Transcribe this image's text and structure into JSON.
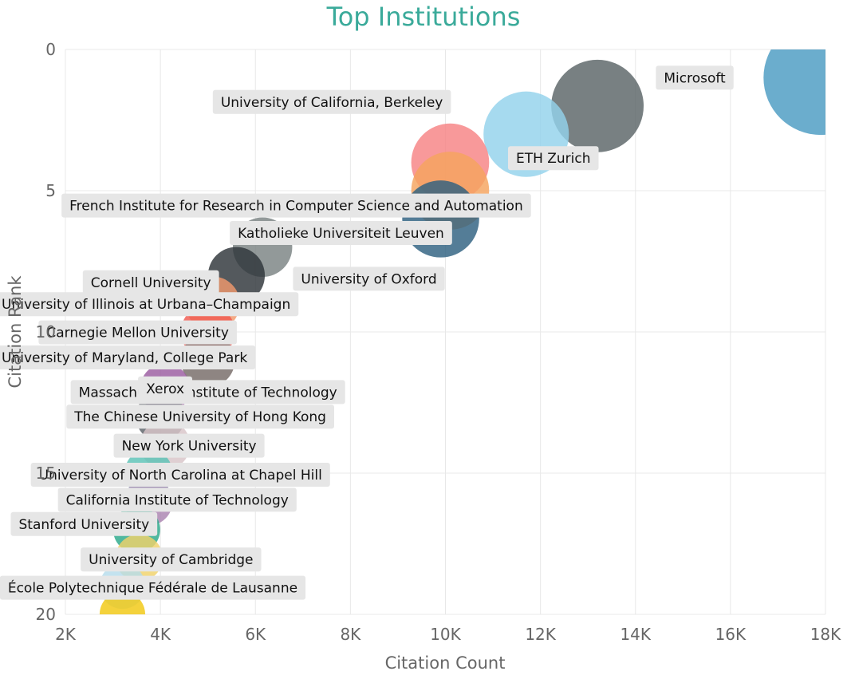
{
  "chart_data": {
    "type": "scatter",
    "title": "Top Institutions",
    "xlabel": "Citation Count",
    "ylabel": "Citation Rank",
    "xlim": [
      2000,
      18000
    ],
    "ylim": [
      0,
      20
    ],
    "y_reversed": true,
    "grid": true,
    "x_ticks": [
      {
        "value": 2000,
        "label": "2K"
      },
      {
        "value": 4000,
        "label": "4K"
      },
      {
        "value": 6000,
        "label": "6K"
      },
      {
        "value": 8000,
        "label": "8K"
      },
      {
        "value": 10000,
        "label": "10K"
      },
      {
        "value": 12000,
        "label": "12K"
      },
      {
        "value": 14000,
        "label": "14K"
      },
      {
        "value": 16000,
        "label": "16K"
      },
      {
        "value": 18000,
        "label": "18K"
      }
    ],
    "y_ticks": [
      {
        "value": 0,
        "label": "0"
      },
      {
        "value": 5,
        "label": "5"
      },
      {
        "value": 10,
        "label": "10"
      },
      {
        "value": 15,
        "label": "15"
      },
      {
        "value": 20,
        "label": "20"
      }
    ],
    "points": [
      {
        "name": "Microsoft",
        "x": 17900,
        "y": 1,
        "color": "#4a9bc2",
        "label_dx": -158,
        "label_dy": 0
      },
      {
        "name": "University of California, Berkeley",
        "x": 13200,
        "y": 2,
        "color": "#5a6466",
        "label_dx": -333,
        "label_dy": -5
      },
      {
        "name": "ETH Zurich",
        "x": 11700,
        "y": 3,
        "color": "#92d2ec",
        "label_dx": 34,
        "label_dy": 30
      },
      {
        "name": "French Institute for Research in Computer Science and Automation",
        "x": 10100,
        "y": 4,
        "color": "#f68384",
        "label_dx": -193,
        "label_dy": 54
      },
      {
        "name": "Katholieke Universiteit Leuven",
        "x": 10100,
        "y": 5,
        "color": "#f5a45e",
        "label_dx": -137,
        "label_dy": 53
      },
      {
        "name": "University of Oxford",
        "x": 9900,
        "y": 6,
        "color": "#2e6080",
        "label_dx": -90,
        "label_dy": 75
      },
      {
        "name": "Cornell University",
        "x": 6150,
        "y": 7,
        "color": "#7a8283",
        "label_dx": -140,
        "label_dy": 44
      },
      {
        "name": "University of Illinois at Urbana–Champaign",
        "x": 5600,
        "y": 8,
        "color": "#2e3539",
        "label_dx": -216,
        "label_dy": 36
      },
      {
        "name": "Carnegie Mellon University",
        "x": 5100,
        "y": 9,
        "color": "#f0996d",
        "label_dx": -94,
        "label_dy": 36
      },
      {
        "name": "University of Maryland, College Park",
        "x": 5000,
        "y": 10,
        "color": "#f05a50",
        "label_dx": -145,
        "label_dy": 32
      },
      {
        "name": "Massachusetts Institute of Technology",
        "x": 5000,
        "y": 11,
        "color": "#756a66",
        "label_dx": 0,
        "label_dy": 40
      },
      {
        "name": "Xerox",
        "x": 4100,
        "y": 12,
        "color": "#9a5aa0",
        "label_dx": 0,
        "label_dy": 0
      },
      {
        "name": "The Chinese University of Hong Kong",
        "x": 4000,
        "y": 13,
        "color": "#5c6268",
        "label_dx": 50,
        "label_dy": 0
      },
      {
        "name": "New York University",
        "x": 4100,
        "y": 14,
        "color": "#d8c4c8",
        "label_dx": 30,
        "label_dy": 1
      },
      {
        "name": "University of North Carolina at Chapel Hill",
        "x": 3750,
        "y": 15,
        "color": "#5cc2b6",
        "label_dx": 40,
        "label_dy": 2
      },
      {
        "name": "California Institute of Technology",
        "x": 3750,
        "y": 16,
        "color": "#a982b0",
        "label_dx": 36,
        "label_dy": -2
      },
      {
        "name": "Stanford University",
        "x": 3500,
        "y": 17,
        "color": "#2aa88a",
        "label_dx": -66,
        "label_dy": -7
      },
      {
        "name": "University of Cambridge",
        "x": 3550,
        "y": 18,
        "color": "#f0d26a",
        "label_dx": 40,
        "label_dy": 2
      },
      {
        "name": "École Polytechnique Fédérale de Lausanne",
        "x": 3200,
        "y": 19,
        "color": "#b6dcec",
        "label_dx": 38,
        "label_dy": 2
      },
      {
        "name": "",
        "x": 3200,
        "y": 20,
        "color": "#f2c811",
        "label_dx": 0,
        "label_dy": 0
      }
    ]
  }
}
